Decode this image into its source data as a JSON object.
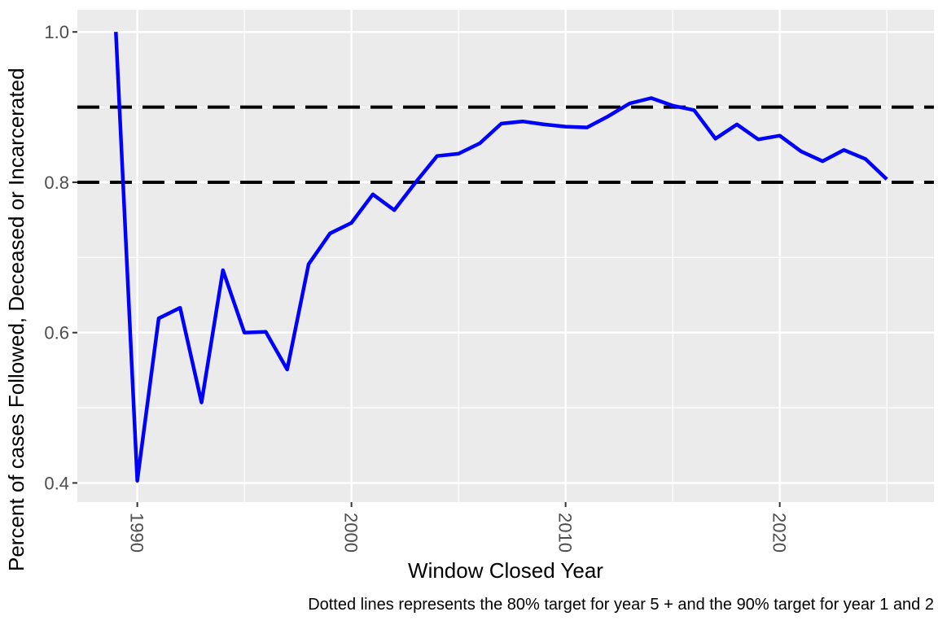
{
  "chart_data": {
    "type": "line",
    "title": "",
    "xlabel": "Window Closed Year",
    "ylabel": "Percent of cases Followed, Deceased or Incarcerated",
    "caption": "Dotted lines represents the 80% target for year 5 + and the 90% target for year 1 and 2",
    "x": [
      1989,
      1990,
      1991,
      1992,
      1993,
      1994,
      1995,
      1996,
      1997,
      1998,
      1999,
      2000,
      2001,
      2002,
      2003,
      2004,
      2005,
      2006,
      2007,
      2008,
      2009,
      2010,
      2011,
      2012,
      2013,
      2014,
      2015,
      2016,
      2017,
      2018,
      2019,
      2020,
      2021,
      2022,
      2023,
      2024,
      2025
    ],
    "series": [
      {
        "name": "Percent of cases Followed, Deceased or Incarcerated",
        "color": "#0000FF",
        "values": [
          1.0,
          0.403,
          0.619,
          0.633,
          0.507,
          0.683,
          0.6,
          0.601,
          0.551,
          0.691,
          0.732,
          0.746,
          0.784,
          0.763,
          0.8,
          0.835,
          0.838,
          0.852,
          0.878,
          0.881,
          0.877,
          0.874,
          0.873,
          0.888,
          0.905,
          0.912,
          0.902,
          0.896,
          0.858,
          0.877,
          0.857,
          0.862,
          0.841,
          0.828,
          0.843,
          0.831,
          0.804
        ]
      }
    ],
    "reference_lines": [
      {
        "value": 0.9,
        "style": "dashed",
        "color": "#000000",
        "label": "90% target for year 1 and 2"
      },
      {
        "value": 0.8,
        "style": "dashed",
        "color": "#000000",
        "label": "80% target for year 5 +"
      }
    ],
    "xlim": [
      1987.2,
      2027.2
    ],
    "ylim": [
      0.3745,
      1.0295
    ],
    "x_ticks": [
      1990,
      2000,
      2010,
      2020
    ],
    "x_tick_labels": [
      "1990",
      "2000",
      "2010",
      "2020"
    ],
    "x_minor_breaks": [
      1995,
      2005,
      2015,
      2025
    ],
    "y_ticks": [
      0.4,
      0.6,
      0.8,
      1.0
    ],
    "y_tick_labels": [
      "0.4",
      "0.6",
      "0.8",
      "1.0"
    ],
    "y_minor_breaks": [
      0.5,
      0.7,
      0.9
    ],
    "x_tick_label_rotation_deg": 90,
    "grid": true,
    "legend_position": "none",
    "panel_bg": "#EBEBEB",
    "grid_color": "#FFFFFF",
    "tick_mark_color": "#333333",
    "tick_label_color": "#4D4D4D",
    "axis_title_color": "#000000"
  }
}
